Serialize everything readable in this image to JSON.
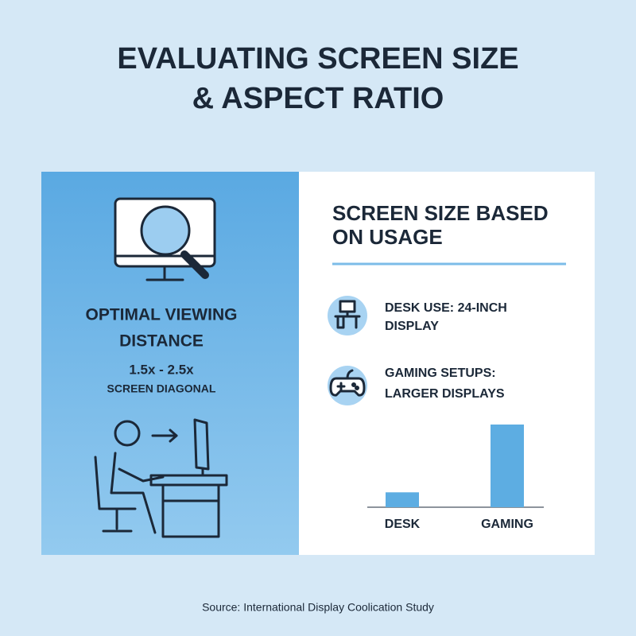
{
  "title": [
    "EVALUATING SCREEN SIZE",
    "& ASPECT RATIO"
  ],
  "left_panel": {
    "heading": [
      "OPTIMAL VIEWING",
      "DISTANCE"
    ],
    "ratio": "1.5x - 2.5x",
    "ratio_label": "SCREEN DIAGONAL"
  },
  "right_panel": {
    "heading": [
      "SCREEN SIZE BASED",
      "ON USAGE"
    ],
    "items": [
      {
        "label": [
          "DESK USE: 24-INCH",
          "DISPLAY"
        ]
      },
      {
        "label": [
          "GAMING SETUPS:",
          "LARGER DISPLAYS"
        ]
      }
    ]
  },
  "chart": {
    "type": "bar",
    "categories": [
      "DESK",
      "GAMING"
    ],
    "values": [
      18,
      100
    ],
    "ylim": [
      0,
      100
    ],
    "color": "#5dade2"
  },
  "source": "Source: International Display Coolication Study"
}
